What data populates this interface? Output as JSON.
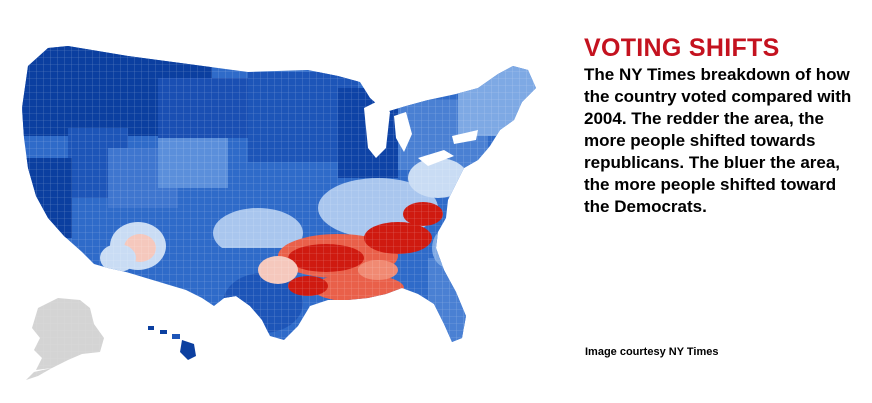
{
  "title": "VOTING SHIFTS",
  "description": "The NY Times breakdown of how the country voted compared with 2004. The redder the area, the more people shifted towards republicans. The bluer the area, the more people shifted toward the Democrats.",
  "credit": "Image courtesy NY Times",
  "colors": {
    "title": "#c4121f",
    "dem_strong": "#0b3fa0",
    "dem_medium": "#2f6bc9",
    "dem_light": "#7ea9e4",
    "dem_faint": "#c9dcf4",
    "rep_faint": "#f5c8bd",
    "rep_medium": "#e9604a",
    "rep_strong": "#cf1a10",
    "no_data": "#d4d4d4"
  }
}
